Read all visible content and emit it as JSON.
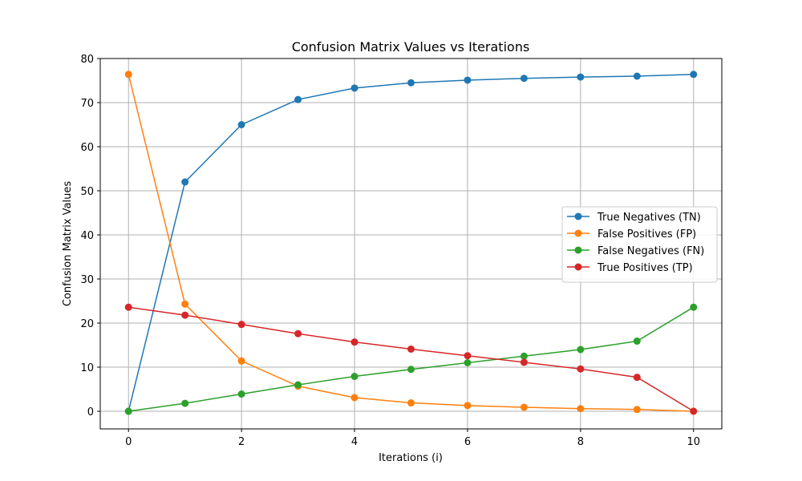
{
  "chart_data": {
    "type": "line",
    "title": "Confusion Matrix Values vs Iterations",
    "xlabel": "Iterations (i)",
    "ylabel": "Confusion Matrix Values",
    "x": [
      0,
      1,
      2,
      3,
      4,
      5,
      6,
      7,
      8,
      9,
      10
    ],
    "xlim": [
      -0.5,
      10.5
    ],
    "ylim": [
      -4,
      80
    ],
    "xticks": [
      0,
      2,
      4,
      6,
      8,
      10
    ],
    "yticks": [
      0,
      10,
      20,
      30,
      40,
      50,
      60,
      70,
      80
    ],
    "grid": true,
    "legend_position": "center-right",
    "series": [
      {
        "name": "True Negatives (TN)",
        "color": "#1f77b4",
        "values": [
          0,
          52.0,
          65.0,
          70.7,
          73.3,
          74.5,
          75.1,
          75.5,
          75.8,
          76.0,
          76.4
        ]
      },
      {
        "name": "False Positives (FP)",
        "color": "#ff7f0e",
        "values": [
          76.4,
          24.3,
          11.4,
          5.7,
          3.1,
          1.9,
          1.3,
          0.9,
          0.6,
          0.4,
          0
        ]
      },
      {
        "name": "False Negatives (FN)",
        "color": "#2ca02c",
        "values": [
          0,
          1.8,
          3.9,
          6.0,
          7.9,
          9.5,
          11.0,
          12.5,
          14.0,
          15.9,
          23.6
        ]
      },
      {
        "name": "True Positives (TP)",
        "color": "#d62728",
        "values": [
          23.6,
          21.8,
          19.7,
          17.6,
          15.7,
          14.1,
          12.6,
          11.1,
          9.6,
          7.7,
          0
        ]
      }
    ]
  }
}
